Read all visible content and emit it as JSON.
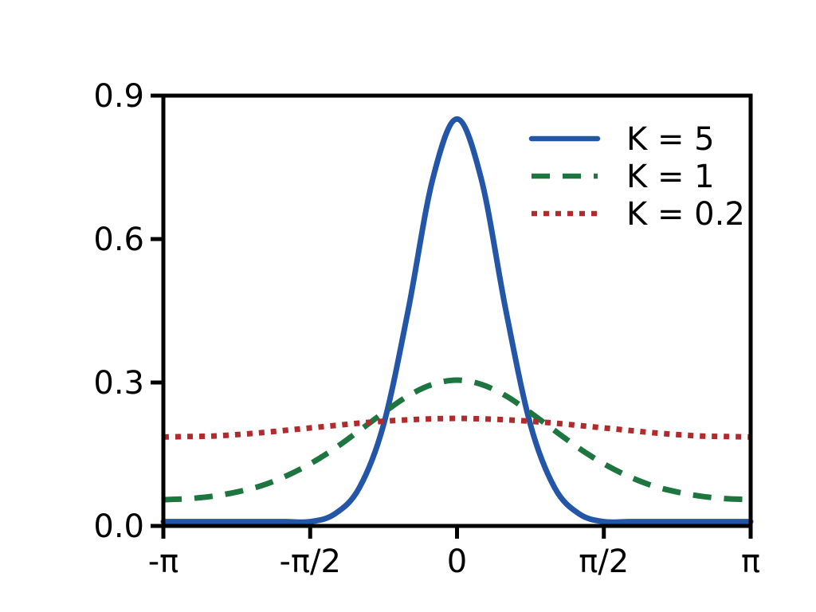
{
  "figure": {
    "background": "#ffffff",
    "axis_color": "#000000",
    "text_color": "#000000"
  },
  "chart_data": {
    "type": "line",
    "title": "",
    "xlabel": "",
    "ylabel": "",
    "xlim": [
      -3.1416,
      3.1416
    ],
    "ylim": [
      0,
      0.9
    ],
    "grid": false,
    "legend_position": "upper right",
    "legend_frame": false,
    "xticks": {
      "values": [
        -3.1416,
        -1.5708,
        0,
        1.5708,
        3.1416
      ],
      "labels": [
        "-π",
        "-π/2",
        "0",
        "π/2",
        "π"
      ]
    },
    "yticks": {
      "values": [
        0,
        0.3,
        0.6,
        0.9
      ],
      "labels": [
        "0.0",
        "0.3",
        "0.6",
        "0.9"
      ]
    },
    "x": [
      -3.1416,
      -2.8798,
      -2.618,
      -2.3562,
      -2.0944,
      -1.8326,
      -1.5708,
      -1.309,
      -1.0472,
      -0.7854,
      -0.5236,
      -0.2618,
      0,
      0.2618,
      0.5236,
      0.7854,
      1.0472,
      1.309,
      1.5708,
      1.8326,
      2.0944,
      2.3562,
      2.618,
      2.8798,
      3.1416
    ],
    "series": [
      {
        "name": "K = 5",
        "color": "#2456a8",
        "style": "solid",
        "dash": null,
        "peak": 0.851,
        "values": [
          0.009,
          0.009,
          0.009,
          0.009,
          0.009,
          0.009,
          0.009,
          0.025,
          0.079,
          0.212,
          0.45,
          0.724,
          0.851,
          0.724,
          0.45,
          0.212,
          0.079,
          0.025,
          0.009,
          0.009,
          0.009,
          0.009,
          0.009,
          0.009,
          0.009
        ]
      },
      {
        "name": "K = 1",
        "color": "#1d7640",
        "style": "dashed",
        "dash": [
          23,
          16
        ],
        "peak": 0.305,
        "values": [
          0.055,
          0.057,
          0.062,
          0.071,
          0.084,
          0.104,
          0.13,
          0.162,
          0.199,
          0.237,
          0.272,
          0.296,
          0.305,
          0.296,
          0.272,
          0.237,
          0.199,
          0.162,
          0.13,
          0.104,
          0.084,
          0.071,
          0.062,
          0.057,
          0.055
        ]
      },
      {
        "name": "K = 0.2",
        "color": "#b02a2e",
        "style": "dotted",
        "dash": [
          7,
          8
        ],
        "peak": 0.225,
        "values": [
          0.186,
          0.187,
          0.188,
          0.191,
          0.195,
          0.2,
          0.205,
          0.21,
          0.215,
          0.219,
          0.222,
          0.224,
          0.225,
          0.224,
          0.222,
          0.219,
          0.215,
          0.21,
          0.205,
          0.2,
          0.195,
          0.191,
          0.188,
          0.187,
          0.186
        ]
      }
    ]
  }
}
